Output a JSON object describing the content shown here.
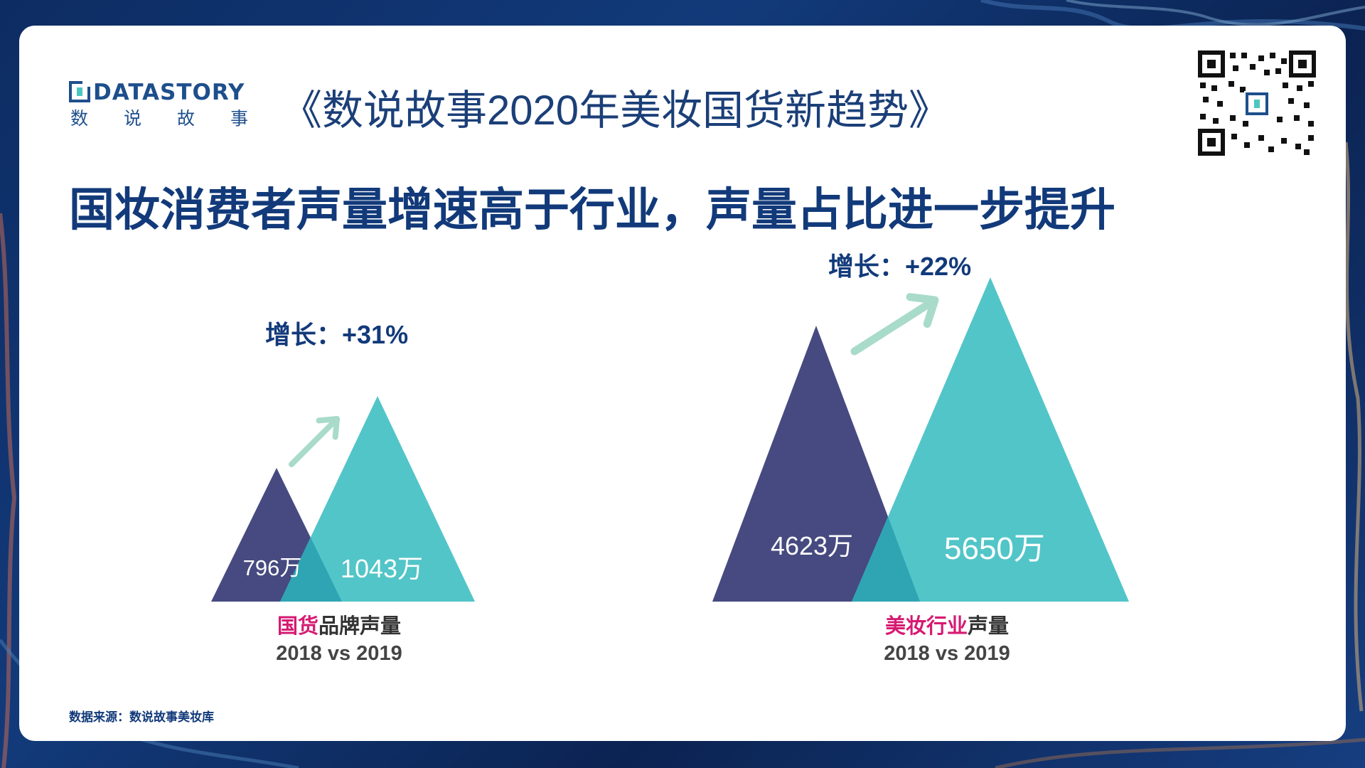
{
  "header": {
    "logo_en": "DATASTORY",
    "logo_cn_chars": [
      "数",
      "说",
      "故",
      "事"
    ],
    "report_title": "《数说故事2020年美妆国货新趋势》"
  },
  "headline": "国妆消费者声量增速高于行业，声量占比进一步提升",
  "source": "数据来源：数说故事美妆库",
  "colors": {
    "navy": "#464a80",
    "teal": "#52c5c8",
    "overlap": "#2fa5b3",
    "arrow": "#a8dbc9",
    "title_blue": "#123a7a",
    "accent_pink": "#d61a72"
  },
  "chart_data": [
    {
      "type": "area",
      "unit": "万",
      "growth_label": "增长：+31%",
      "caption_highlight": "国货",
      "caption_rest": "品牌声量",
      "caption_line2": "2018 vs 2019",
      "series": [
        {
          "year": "2018",
          "value": 796,
          "label": "796万"
        },
        {
          "year": "2019",
          "value": 1043,
          "label": "1043万"
        }
      ]
    },
    {
      "type": "area",
      "unit": "万",
      "growth_label": "增长：+22%",
      "caption_highlight": "美妆行业",
      "caption_rest": "声量",
      "caption_line2": "2018 vs 2019",
      "series": [
        {
          "year": "2018",
          "value": 4623,
          "label": "4623万"
        },
        {
          "year": "2019",
          "value": 5650,
          "label": "5650万"
        }
      ]
    }
  ]
}
